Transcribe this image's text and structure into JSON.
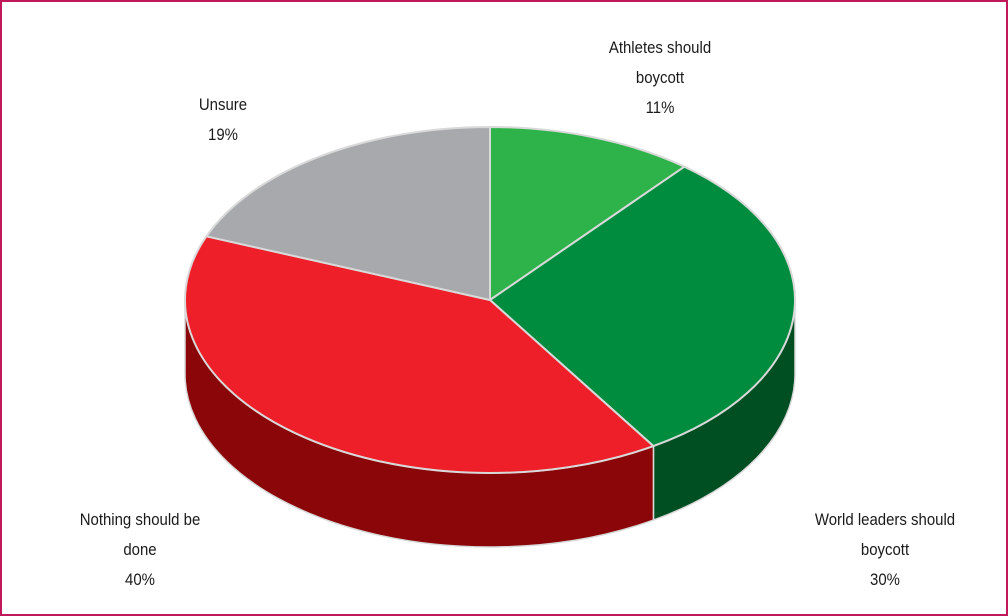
{
  "chart_data": {
    "type": "pie",
    "style": "3d",
    "slices": [
      {
        "line1": "Athletes should",
        "line2": "boycott",
        "pct_label": "11%",
        "value": 11,
        "top_color": "#2db34a",
        "side_color": "#1e7a31"
      },
      {
        "line1": "World leaders should",
        "line2": "boycott",
        "pct_label": "30%",
        "value": 30,
        "top_color": "#008c3f",
        "side_color": "#004f23"
      },
      {
        "line1": "Nothing should be",
        "line2": "done",
        "pct_label": "40%",
        "value": 40,
        "top_color": "#ee1f28",
        "side_color": "#8b0608"
      },
      {
        "line1": "Unsure",
        "line2": "",
        "pct_label": "19%",
        "value": 19,
        "top_color": "#a7a9ac",
        "side_color": "#6d6e71"
      }
    ],
    "border_color": "#c0185a",
    "legend": "none"
  }
}
